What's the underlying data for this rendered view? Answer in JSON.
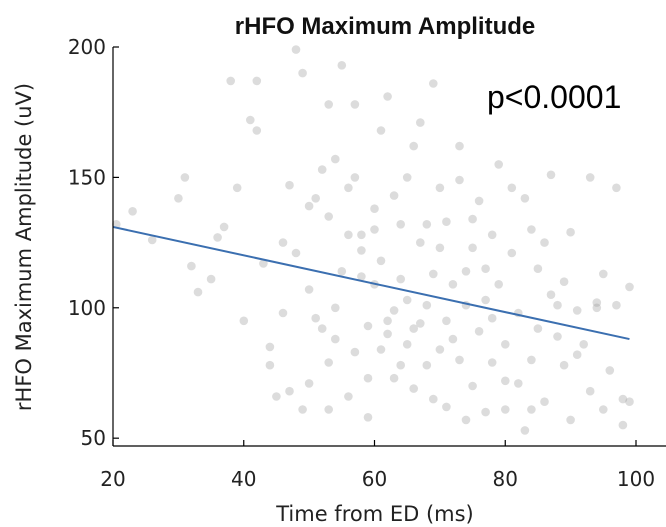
{
  "chart_data": {
    "type": "scatter",
    "title": "rHFO Maximum Amplitude",
    "xlabel": "Time from ED (ms)",
    "ylabel": "rHFO Maximum Amplitude (uV)",
    "xlim": [
      20,
      100
    ],
    "ylim": [
      47,
      200
    ],
    "xticks": [
      20,
      40,
      60,
      80,
      100
    ],
    "yticks": [
      50,
      100,
      150,
      200
    ],
    "xtick_labels": [
      "20",
      "40",
      "60",
      "80",
      "100"
    ],
    "ytick_labels": [
      "50",
      "100",
      "150",
      "200"
    ],
    "annotation": "p<0.0001",
    "grid": false,
    "colors": {
      "points": "#9a9a9a",
      "fit_line": "#3b6fb0",
      "axes": "#000000"
    },
    "fit_line": {
      "x": [
        20,
        99
      ],
      "y": [
        131,
        88
      ]
    },
    "points": [
      [
        20.5,
        132
      ],
      [
        23,
        137
      ],
      [
        26,
        126
      ],
      [
        30,
        142
      ],
      [
        31,
        150
      ],
      [
        32,
        116
      ],
      [
        33,
        106
      ],
      [
        35,
        111
      ],
      [
        36,
        127
      ],
      [
        37,
        131
      ],
      [
        38,
        187
      ],
      [
        39,
        146
      ],
      [
        40,
        95
      ],
      [
        41,
        172
      ],
      [
        42,
        187
      ],
      [
        42,
        168
      ],
      [
        43,
        117
      ],
      [
        44,
        78
      ],
      [
        44,
        85
      ],
      [
        45,
        66
      ],
      [
        46,
        98
      ],
      [
        46,
        125
      ],
      [
        47,
        68
      ],
      [
        47,
        147
      ],
      [
        48,
        199
      ],
      [
        48,
        121
      ],
      [
        49,
        190
      ],
      [
        49,
        61
      ],
      [
        50,
        71
      ],
      [
        50,
        139
      ],
      [
        50,
        107
      ],
      [
        51,
        96
      ],
      [
        51,
        142
      ],
      [
        52,
        92
      ],
      [
        52,
        153
      ],
      [
        53,
        79
      ],
      [
        53,
        178
      ],
      [
        53,
        135
      ],
      [
        53,
        61
      ],
      [
        54,
        157
      ],
      [
        54,
        100
      ],
      [
        54,
        88
      ],
      [
        55,
        193
      ],
      [
        55,
        114
      ],
      [
        56,
        146
      ],
      [
        56,
        128
      ],
      [
        56,
        66
      ],
      [
        57,
        178
      ],
      [
        57,
        150
      ],
      [
        57,
        83
      ],
      [
        58,
        112
      ],
      [
        58,
        122
      ],
      [
        58,
        128
      ],
      [
        59,
        93
      ],
      [
        59,
        73
      ],
      [
        59,
        58
      ],
      [
        60,
        130
      ],
      [
        60,
        138
      ],
      [
        60,
        109
      ],
      [
        61,
        84
      ],
      [
        61,
        118
      ],
      [
        61,
        168
      ],
      [
        62,
        181
      ],
      [
        62,
        95
      ],
      [
        62,
        90
      ],
      [
        63,
        73
      ],
      [
        63,
        99
      ],
      [
        63,
        143
      ],
      [
        64,
        132
      ],
      [
        64,
        78
      ],
      [
        64,
        111
      ],
      [
        65,
        86
      ],
      [
        65,
        150
      ],
      [
        65,
        103
      ],
      [
        66,
        92
      ],
      [
        66,
        162
      ],
      [
        66,
        69
      ],
      [
        67,
        171
      ],
      [
        67,
        125
      ],
      [
        67,
        94
      ],
      [
        68,
        101
      ],
      [
        68,
        78
      ],
      [
        68,
        132
      ],
      [
        69,
        186
      ],
      [
        69,
        113
      ],
      [
        69,
        65
      ],
      [
        70,
        84
      ],
      [
        70,
        146
      ],
      [
        70,
        123
      ],
      [
        71,
        95
      ],
      [
        71,
        62
      ],
      [
        71,
        133
      ],
      [
        72,
        109
      ],
      [
        72,
        88
      ],
      [
        73,
        80
      ],
      [
        73,
        162
      ],
      [
        73,
        149
      ],
      [
        74,
        101
      ],
      [
        74,
        57
      ],
      [
        74,
        114
      ],
      [
        75,
        123
      ],
      [
        75,
        70
      ],
      [
        75,
        134
      ],
      [
        76,
        141
      ],
      [
        76,
        91
      ],
      [
        77,
        115
      ],
      [
        77,
        60
      ],
      [
        77,
        103
      ],
      [
        78,
        79
      ],
      [
        78,
        96
      ],
      [
        78,
        128
      ],
      [
        79,
        155
      ],
      [
        79,
        109
      ],
      [
        80,
        72
      ],
      [
        80,
        86
      ],
      [
        80,
        61
      ],
      [
        81,
        146
      ],
      [
        81,
        121
      ],
      [
        82,
        71
      ],
      [
        82,
        98
      ],
      [
        83,
        142
      ],
      [
        83,
        53
      ],
      [
        84,
        80
      ],
      [
        84,
        130
      ],
      [
        84,
        61
      ],
      [
        85,
        115
      ],
      [
        85,
        92
      ],
      [
        86,
        64
      ],
      [
        86,
        125
      ],
      [
        87,
        151
      ],
      [
        87,
        105
      ],
      [
        88,
        89
      ],
      [
        88,
        101
      ],
      [
        89,
        110
      ],
      [
        89,
        78
      ],
      [
        90,
        129
      ],
      [
        90,
        57
      ],
      [
        91,
        99
      ],
      [
        91,
        82
      ],
      [
        92,
        86
      ],
      [
        93,
        150
      ],
      [
        93,
        68
      ],
      [
        94,
        100
      ],
      [
        94,
        102
      ],
      [
        95,
        113
      ],
      [
        95,
        61
      ],
      [
        96,
        76
      ],
      [
        97,
        146
      ],
      [
        97,
        101
      ],
      [
        98,
        65
      ],
      [
        98,
        55
      ],
      [
        99,
        64
      ],
      [
        99,
        108
      ]
    ]
  }
}
